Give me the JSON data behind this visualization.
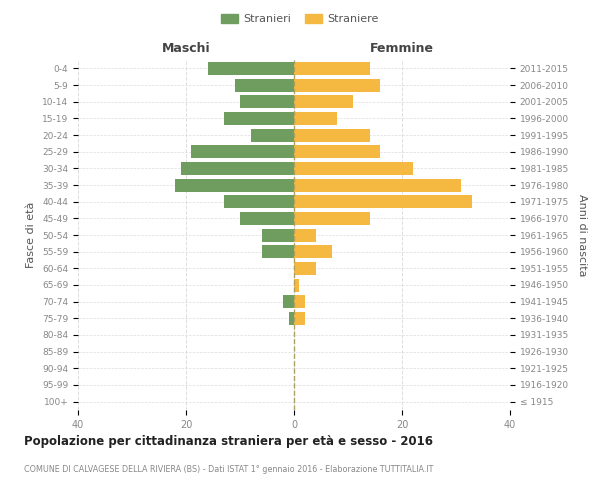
{
  "age_groups": [
    "100+",
    "95-99",
    "90-94",
    "85-89",
    "80-84",
    "75-79",
    "70-74",
    "65-69",
    "60-64",
    "55-59",
    "50-54",
    "45-49",
    "40-44",
    "35-39",
    "30-34",
    "25-29",
    "20-24",
    "15-19",
    "10-14",
    "5-9",
    "0-4"
  ],
  "birth_years": [
    "≤ 1915",
    "1916-1920",
    "1921-1925",
    "1926-1930",
    "1931-1935",
    "1936-1940",
    "1941-1945",
    "1946-1950",
    "1951-1955",
    "1956-1960",
    "1961-1965",
    "1966-1970",
    "1971-1975",
    "1976-1980",
    "1981-1985",
    "1986-1990",
    "1991-1995",
    "1996-2000",
    "2001-2005",
    "2006-2010",
    "2011-2015"
  ],
  "males": [
    0,
    0,
    0,
    0,
    0,
    1,
    2,
    0,
    0,
    6,
    6,
    10,
    13,
    22,
    21,
    19,
    8,
    13,
    10,
    11,
    16
  ],
  "females": [
    0,
    0,
    0,
    0,
    0,
    2,
    2,
    1,
    4,
    7,
    4,
    14,
    33,
    31,
    22,
    16,
    14,
    8,
    11,
    16,
    14
  ],
  "male_color": "#6f9c5f",
  "female_color": "#f5b942",
  "title": "Popolazione per cittadinanza straniera per età e sesso - 2016",
  "subtitle": "COMUNE DI CALVAGESE DELLA RIVIERA (BS) - Dati ISTAT 1° gennaio 2016 - Elaborazione TUTTITALIA.IT",
  "xlabel_left": "Maschi",
  "xlabel_right": "Femmine",
  "ylabel_left": "Fasce di età",
  "ylabel_right": "Anni di nascita",
  "legend_stranieri": "Stranieri",
  "legend_straniere": "Straniere",
  "xlim": 40,
  "background_color": "#ffffff",
  "grid_color": "#dddddd",
  "axis_label_color": "#555555",
  "tick_label_color": "#888888",
  "bar_height": 0.78
}
